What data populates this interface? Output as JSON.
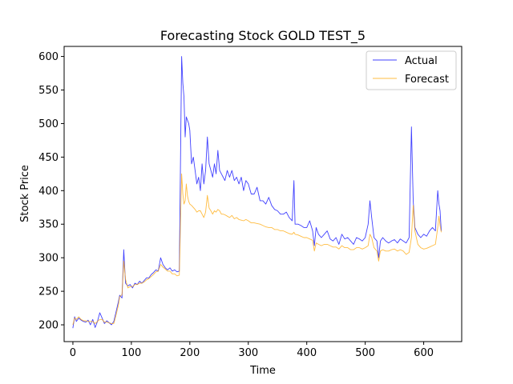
{
  "chart_data": {
    "type": "line",
    "title": "Forecasting Stock GOLD TEST_5",
    "xlabel": "Time",
    "ylabel": "Stock Price",
    "xlim": [
      -15,
      665
    ],
    "ylim": [
      175,
      615
    ],
    "x_ticks": [
      0,
      100,
      200,
      300,
      400,
      500,
      600
    ],
    "y_ticks": [
      200,
      250,
      300,
      350,
      400,
      450,
      500,
      550,
      600
    ],
    "grid": false,
    "legend_position": "top-right",
    "series": [
      {
        "name": "Actual",
        "color": "#0000ff",
        "points": [
          [
            0,
            195
          ],
          [
            3,
            212
          ],
          [
            6,
            205
          ],
          [
            10,
            210
          ],
          [
            14,
            207
          ],
          [
            18,
            205
          ],
          [
            22,
            204
          ],
          [
            26,
            207
          ],
          [
            30,
            200
          ],
          [
            34,
            208
          ],
          [
            38,
            196
          ],
          [
            42,
            205
          ],
          [
            46,
            218
          ],
          [
            50,
            210
          ],
          [
            54,
            202
          ],
          [
            58,
            206
          ],
          [
            62,
            203
          ],
          [
            66,
            200
          ],
          [
            70,
            205
          ],
          [
            74,
            220
          ],
          [
            78,
            235
          ],
          [
            80,
            244
          ],
          [
            84,
            240
          ],
          [
            87,
            312
          ],
          [
            90,
            262
          ],
          [
            94,
            258
          ],
          [
            98,
            260
          ],
          [
            102,
            255
          ],
          [
            106,
            262
          ],
          [
            110,
            260
          ],
          [
            114,
            265
          ],
          [
            118,
            262
          ],
          [
            122,
            266
          ],
          [
            126,
            270
          ],
          [
            130,
            270
          ],
          [
            134,
            275
          ],
          [
            138,
            278
          ],
          [
            142,
            282
          ],
          [
            146,
            280
          ],
          [
            150,
            300
          ],
          [
            154,
            290
          ],
          [
            158,
            285
          ],
          [
            162,
            282
          ],
          [
            166,
            285
          ],
          [
            170,
            280
          ],
          [
            174,
            282
          ],
          [
            178,
            279
          ],
          [
            182,
            280
          ],
          [
            186,
            600
          ],
          [
            188,
            560
          ],
          [
            190,
            540
          ],
          [
            192,
            480
          ],
          [
            194,
            510
          ],
          [
            196,
            505
          ],
          [
            198,
            500
          ],
          [
            200,
            490
          ],
          [
            203,
            440
          ],
          [
            206,
            450
          ],
          [
            209,
            430
          ],
          [
            212,
            410
          ],
          [
            215,
            420
          ],
          [
            218,
            400
          ],
          [
            221,
            440
          ],
          [
            224,
            410
          ],
          [
            227,
            430
          ],
          [
            230,
            480
          ],
          [
            233,
            440
          ],
          [
            236,
            430
          ],
          [
            239,
            420
          ],
          [
            242,
            440
          ],
          [
            245,
            425
          ],
          [
            248,
            460
          ],
          [
            251,
            430
          ],
          [
            254,
            425
          ],
          [
            257,
            420
          ],
          [
            260,
            415
          ],
          [
            264,
            430
          ],
          [
            268,
            420
          ],
          [
            272,
            430
          ],
          [
            276,
            415
          ],
          [
            280,
            420
          ],
          [
            284,
            410
          ],
          [
            288,
            420
          ],
          [
            292,
            400
          ],
          [
            296,
            415
          ],
          [
            300,
            410
          ],
          [
            305,
            395
          ],
          [
            310,
            395
          ],
          [
            315,
            405
          ],
          [
            320,
            385
          ],
          [
            325,
            385
          ],
          [
            330,
            380
          ],
          [
            335,
            390
          ],
          [
            340,
            378
          ],
          [
            345,
            372
          ],
          [
            350,
            370
          ],
          [
            355,
            365
          ],
          [
            360,
            365
          ],
          [
            365,
            368
          ],
          [
            370,
            360
          ],
          [
            375,
            355
          ],
          [
            378,
            415
          ],
          [
            380,
            350
          ],
          [
            385,
            350
          ],
          [
            390,
            348
          ],
          [
            395,
            345
          ],
          [
            400,
            345
          ],
          [
            405,
            355
          ],
          [
            410,
            340
          ],
          [
            413,
            318
          ],
          [
            416,
            345
          ],
          [
            420,
            335
          ],
          [
            425,
            330
          ],
          [
            430,
            335
          ],
          [
            435,
            340
          ],
          [
            440,
            328
          ],
          [
            445,
            325
          ],
          [
            450,
            330
          ],
          [
            455,
            320
          ],
          [
            460,
            335
          ],
          [
            465,
            328
          ],
          [
            470,
            330
          ],
          [
            475,
            325
          ],
          [
            480,
            320
          ],
          [
            485,
            330
          ],
          [
            490,
            328
          ],
          [
            495,
            325
          ],
          [
            500,
            330
          ],
          [
            505,
            350
          ],
          [
            508,
            385
          ],
          [
            511,
            360
          ],
          [
            515,
            330
          ],
          [
            520,
            325
          ],
          [
            523,
            300
          ],
          [
            526,
            325
          ],
          [
            530,
            330
          ],
          [
            535,
            325
          ],
          [
            540,
            322
          ],
          [
            545,
            325
          ],
          [
            550,
            327
          ],
          [
            555,
            322
          ],
          [
            560,
            328
          ],
          [
            565,
            325
          ],
          [
            570,
            322
          ],
          [
            575,
            330
          ],
          [
            579,
            495
          ],
          [
            582,
            385
          ],
          [
            585,
            345
          ],
          [
            590,
            335
          ],
          [
            595,
            330
          ],
          [
            600,
            335
          ],
          [
            605,
            332
          ],
          [
            610,
            340
          ],
          [
            615,
            345
          ],
          [
            620,
            340
          ],
          [
            624,
            400
          ],
          [
            626,
            380
          ],
          [
            628,
            370
          ],
          [
            630,
            340
          ]
        ]
      },
      {
        "name": "Forecast",
        "color": "#ffa500",
        "points": [
          [
            0,
            200
          ],
          [
            3,
            210
          ],
          [
            6,
            208
          ],
          [
            10,
            212
          ],
          [
            14,
            208
          ],
          [
            18,
            206
          ],
          [
            22,
            206
          ],
          [
            26,
            205
          ],
          [
            30,
            205
          ],
          [
            34,
            205
          ],
          [
            38,
            202
          ],
          [
            42,
            205
          ],
          [
            46,
            208
          ],
          [
            50,
            208
          ],
          [
            54,
            204
          ],
          [
            58,
            204
          ],
          [
            62,
            203
          ],
          [
            66,
            202
          ],
          [
            70,
            202
          ],
          [
            74,
            215
          ],
          [
            78,
            230
          ],
          [
            80,
            242
          ],
          [
            84,
            245
          ],
          [
            87,
            295
          ],
          [
            90,
            268
          ],
          [
            94,
            255
          ],
          [
            98,
            257
          ],
          [
            102,
            257
          ],
          [
            106,
            260
          ],
          [
            110,
            260
          ],
          [
            114,
            262
          ],
          [
            118,
            262
          ],
          [
            122,
            264
          ],
          [
            126,
            267
          ],
          [
            130,
            269
          ],
          [
            134,
            272
          ],
          [
            138,
            275
          ],
          [
            142,
            279
          ],
          [
            146,
            280
          ],
          [
            150,
            290
          ],
          [
            154,
            286
          ],
          [
            158,
            283
          ],
          [
            162,
            280
          ],
          [
            166,
            280
          ],
          [
            170,
            276
          ],
          [
            174,
            276
          ],
          [
            178,
            273
          ],
          [
            182,
            274
          ],
          [
            186,
            425
          ],
          [
            188,
            395
          ],
          [
            190,
            380
          ],
          [
            192,
            385
          ],
          [
            194,
            410
          ],
          [
            196,
            392
          ],
          [
            198,
            384
          ],
          [
            200,
            380
          ],
          [
            203,
            378
          ],
          [
            206,
            375
          ],
          [
            209,
            372
          ],
          [
            212,
            368
          ],
          [
            215,
            370
          ],
          [
            218,
            370
          ],
          [
            221,
            365
          ],
          [
            224,
            360
          ],
          [
            227,
            368
          ],
          [
            230,
            393
          ],
          [
            233,
            374
          ],
          [
            236,
            370
          ],
          [
            239,
            365
          ],
          [
            242,
            370
          ],
          [
            245,
            368
          ],
          [
            248,
            372
          ],
          [
            251,
            370
          ],
          [
            254,
            365
          ],
          [
            257,
            365
          ],
          [
            260,
            364
          ],
          [
            264,
            362
          ],
          [
            268,
            360
          ],
          [
            272,
            363
          ],
          [
            276,
            358
          ],
          [
            280,
            360
          ],
          [
            284,
            357
          ],
          [
            288,
            356
          ],
          [
            292,
            355
          ],
          [
            296,
            357
          ],
          [
            300,
            355
          ],
          [
            305,
            352
          ],
          [
            310,
            352
          ],
          [
            315,
            351
          ],
          [
            320,
            350
          ],
          [
            325,
            348
          ],
          [
            330,
            346
          ],
          [
            335,
            345
          ],
          [
            340,
            345
          ],
          [
            345,
            342
          ],
          [
            350,
            342
          ],
          [
            355,
            340
          ],
          [
            360,
            340
          ],
          [
            365,
            338
          ],
          [
            370,
            336
          ],
          [
            375,
            335
          ],
          [
            378,
            338
          ],
          [
            380,
            335
          ],
          [
            385,
            334
          ],
          [
            390,
            332
          ],
          [
            395,
            330
          ],
          [
            400,
            330
          ],
          [
            405,
            328
          ],
          [
            410,
            326
          ],
          [
            413,
            310
          ],
          [
            416,
            322
          ],
          [
            420,
            320
          ],
          [
            425,
            318
          ],
          [
            430,
            320
          ],
          [
            435,
            320
          ],
          [
            440,
            318
          ],
          [
            445,
            316
          ],
          [
            450,
            316
          ],
          [
            455,
            313
          ],
          [
            460,
            318
          ],
          [
            465,
            315
          ],
          [
            470,
            315
          ],
          [
            475,
            312
          ],
          [
            480,
            312
          ],
          [
            485,
            315
          ],
          [
            490,
            315
          ],
          [
            495,
            313
          ],
          [
            500,
            315
          ],
          [
            505,
            318
          ],
          [
            508,
            335
          ],
          [
            511,
            330
          ],
          [
            515,
            315
          ],
          [
            520,
            310
          ],
          [
            523,
            295
          ],
          [
            526,
            310
          ],
          [
            530,
            312
          ],
          [
            535,
            310
          ],
          [
            540,
            310
          ],
          [
            545,
            312
          ],
          [
            550,
            313
          ],
          [
            555,
            310
          ],
          [
            560,
            312
          ],
          [
            565,
            310
          ],
          [
            570,
            305
          ],
          [
            575,
            308
          ],
          [
            579,
            330
          ],
          [
            582,
            378
          ],
          [
            585,
            340
          ],
          [
            590,
            320
          ],
          [
            595,
            315
          ],
          [
            600,
            313
          ],
          [
            605,
            314
          ],
          [
            610,
            316
          ],
          [
            615,
            318
          ],
          [
            620,
            320
          ],
          [
            624,
            345
          ],
          [
            626,
            362
          ],
          [
            628,
            348
          ],
          [
            630,
            338
          ]
        ]
      }
    ]
  }
}
